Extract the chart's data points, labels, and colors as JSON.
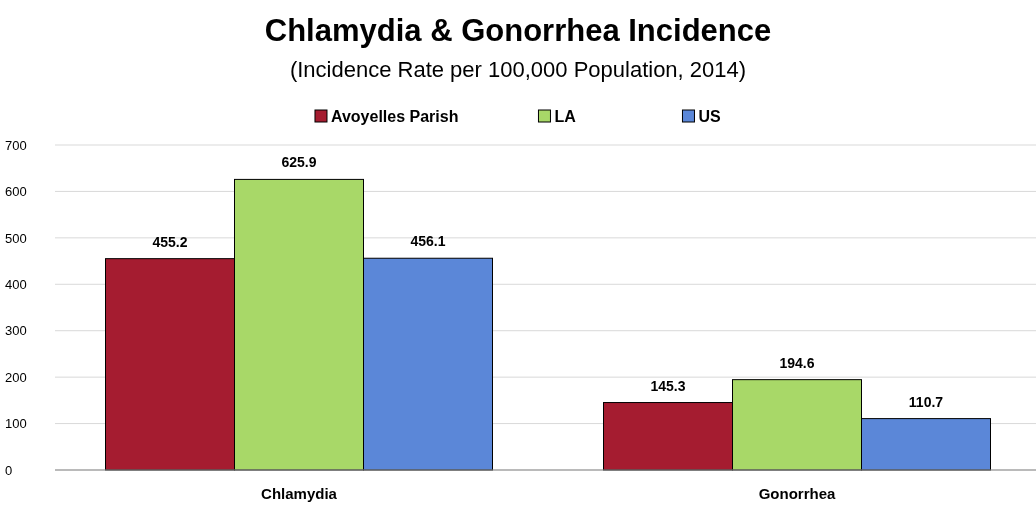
{
  "chart_data": {
    "type": "bar",
    "title": "Chlamydia & Gonorrhea Incidence",
    "subtitle": "(Incidence Rate per 100,000 Population, 2014)",
    "categories": [
      "Chlamydia",
      "Gonorrhea"
    ],
    "series": [
      {
        "name": "Avoyelles Parish",
        "color": "#a51c30",
        "values": [
          455.2,
          145.3
        ]
      },
      {
        "name": "LA",
        "color": "#a8d868",
        "values": [
          625.9,
          194.6
        ]
      },
      {
        "name": "US",
        "color": "#5b87d8",
        "values": [
          456.1,
          110.7
        ]
      }
    ],
    "ylim": [
      0,
      700
    ],
    "yticks": [
      0,
      100,
      200,
      300,
      400,
      500,
      600,
      700
    ],
    "grid": "y",
    "legend": "top",
    "data_labels": true
  }
}
